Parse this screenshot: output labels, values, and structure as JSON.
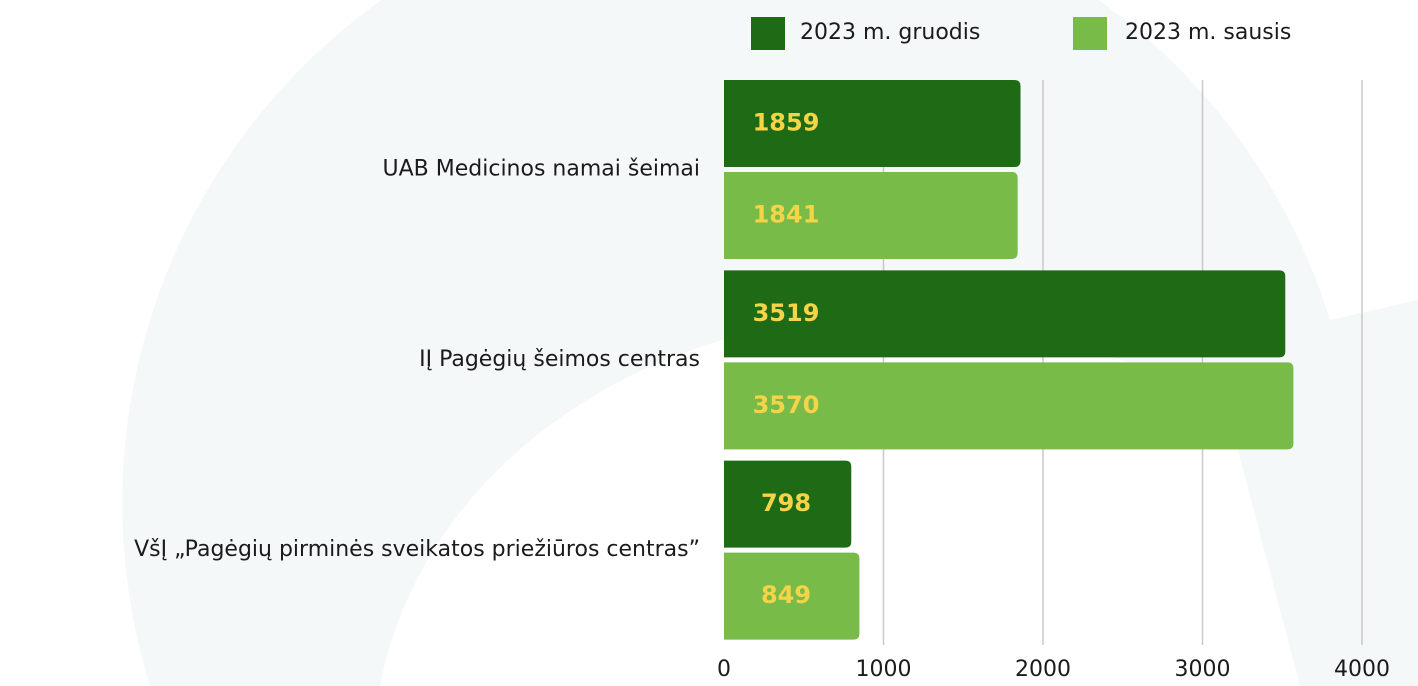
{
  "chart_data": {
    "type": "bar",
    "orientation": "horizontal",
    "categories": [
      "UAB Medicinos namai šeimai",
      "IĮ Pagėgių šeimos centras",
      "VšĮ „Pagėgių pirminės sveikatos priežiūros centras”"
    ],
    "series": [
      {
        "name": "2023 m. gruodis",
        "color": "#1f6b15",
        "values": [
          1859,
          3519,
          798
        ]
      },
      {
        "name": "2023 m. sausis",
        "color": "#78bb48",
        "values": [
          1841,
          3570,
          849
        ]
      }
    ],
    "xlim": [
      0,
      4000
    ],
    "xticks": [
      0,
      1000,
      2000,
      3000,
      4000
    ],
    "grid": true,
    "legend": "top-right"
  }
}
